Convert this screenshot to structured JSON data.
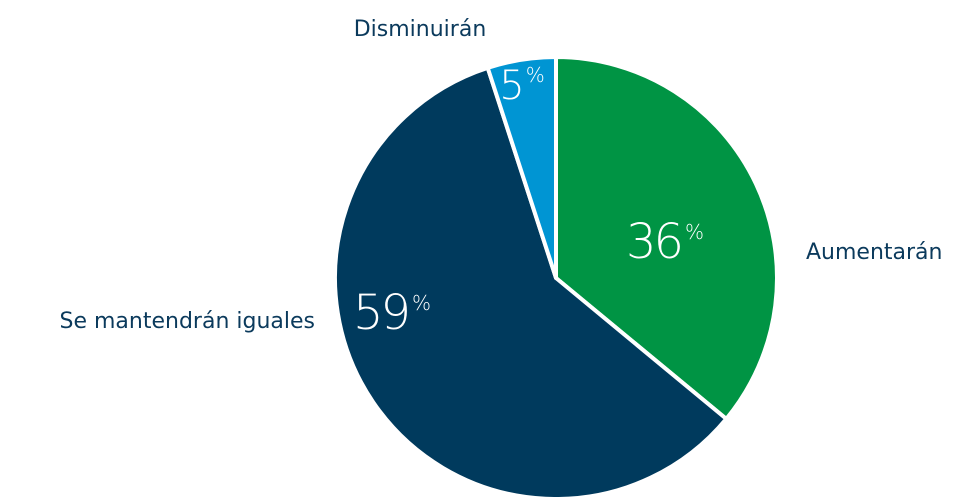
{
  "chart_data": {
    "type": "pie",
    "categories": [
      "Aumentarán",
      "Se mantendrán iguales",
      "Disminuirán"
    ],
    "values": [
      36,
      59,
      5
    ],
    "value_suffix": "%",
    "colors": [
      "#009444",
      "#003a5d",
      "#0095d3"
    ]
  }
}
